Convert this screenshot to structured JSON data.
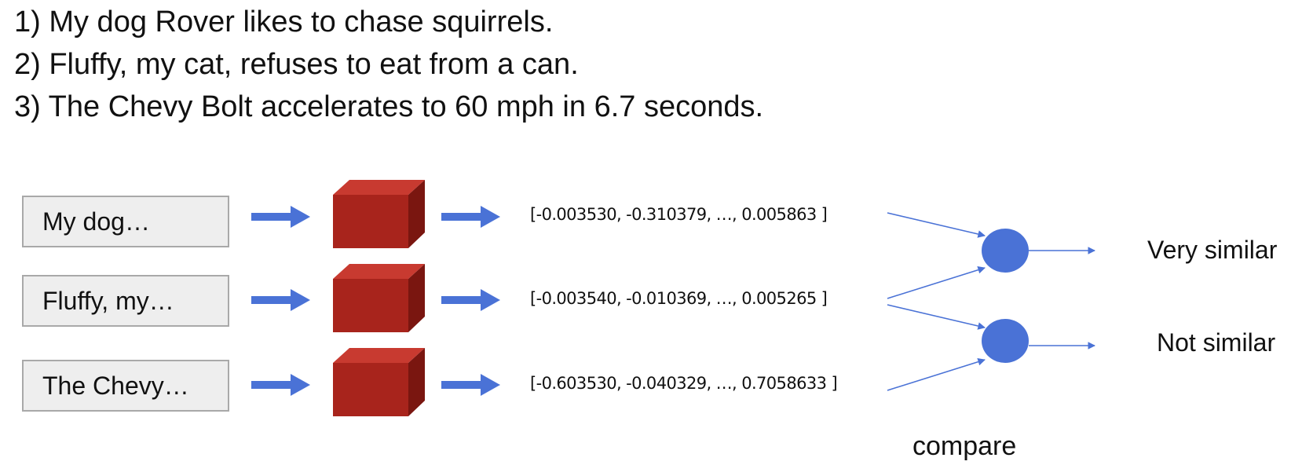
{
  "sentences": [
    "1) My dog Rover likes to chase squirrels.",
    "2) Fluffy, my cat, refuses to eat from a can.",
    "3) The Chevy Bolt accelerates to 60 mph in 6.7 seconds."
  ],
  "inputs": [
    "My dog…",
    "Fluffy, my…",
    "The Chevy…"
  ],
  "embeddings": [
    "[-0.003530, -0.310379, …, 0.005863 ]",
    "[-0.003540, -0.010369, …, 0.005265 ]",
    "[-0.603530, -0.040329, …, 0.7058633 ]"
  ],
  "results": {
    "top": "Very similar",
    "bottom": "Not similar"
  },
  "caption": "compare",
  "colors": {
    "arrow": "#4a72d6",
    "cube_front": "#a8241c",
    "cube_top": "#c83a30",
    "cube_side": "#7a1610",
    "compare_node": "#4a72d6",
    "box_fill": "#eeeeee",
    "box_border": "#a9a9a9"
  },
  "icons": {
    "model": "cube-icon",
    "flow": "arrow-right-icon",
    "compare": "circle-node-icon"
  }
}
